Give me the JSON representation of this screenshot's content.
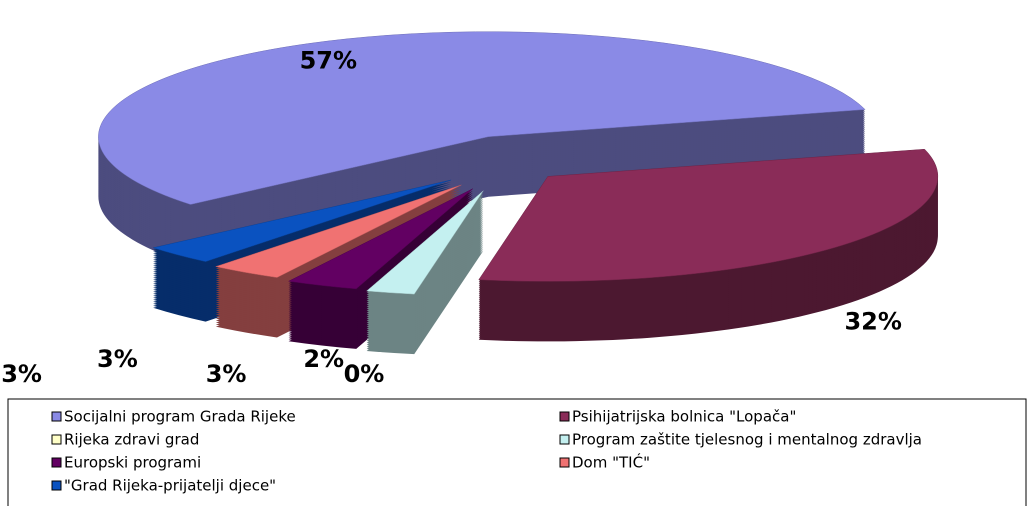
{
  "chart_data": {
    "type": "pie",
    "categories": [
      "Socijalni program Grada Rijeke",
      "Psihijatrijska bolnica \"Lopača\"",
      "Rijeka zdravi grad",
      "Program zaštite tjelesnog i mentalnog zdravlja",
      "Europski programi",
      "Dom \"TIĆ\"",
      "\"Grad Rijeka-prijatelji djece\""
    ],
    "values": [
      57,
      32,
      0,
      2,
      3,
      3,
      3
    ],
    "value_labels": [
      "57%",
      "32%",
      "0%",
      "2%",
      "3%",
      "3%",
      "3%"
    ],
    "colors": [
      "#8a8ae6",
      "#8a2c58",
      "#ffffc8",
      "#c4f0f0",
      "#620062",
      "#f07272",
      "#0a52c0"
    ]
  }
}
